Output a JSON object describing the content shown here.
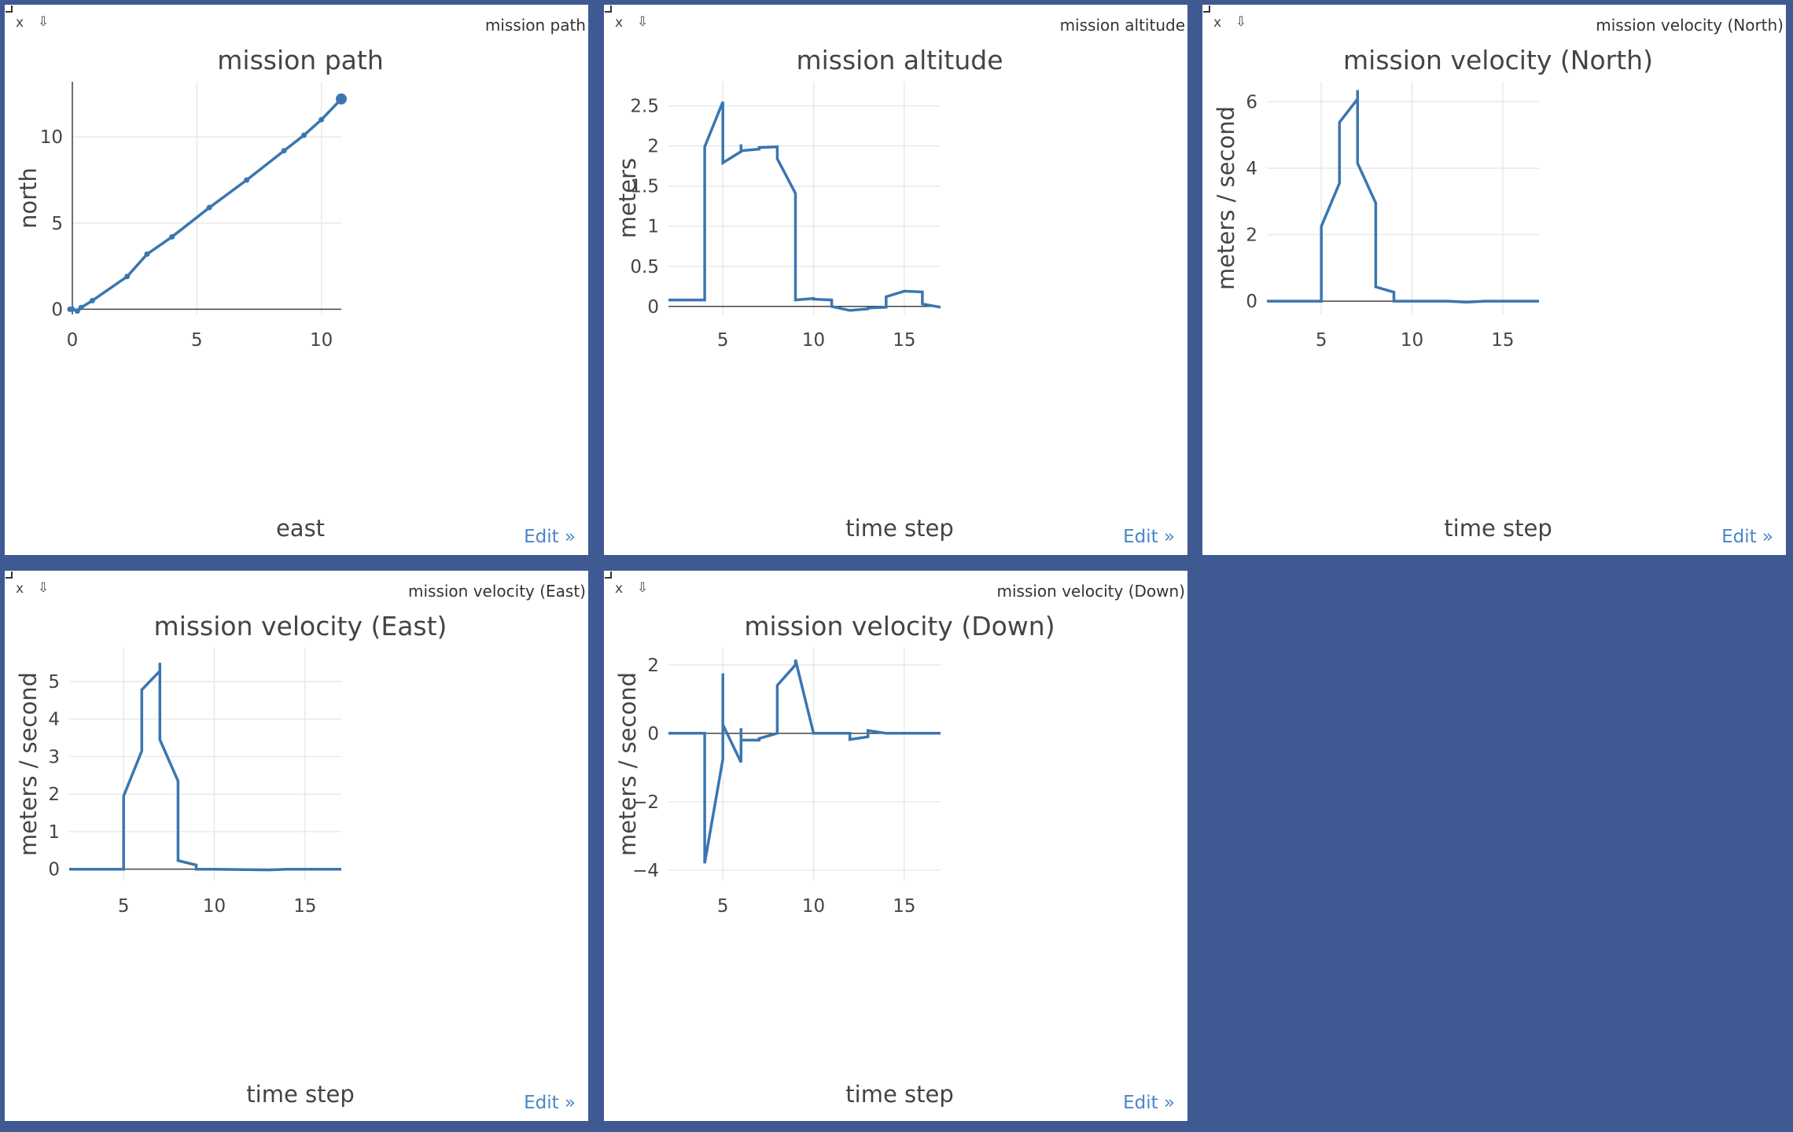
{
  "panels": [
    {
      "id": "mission-path",
      "panel_name": "mission path",
      "close_label": "x",
      "pop_label": "⇩",
      "edit_label": "Edit »"
    },
    {
      "id": "mission-altitude",
      "panel_name": "mission altitude",
      "close_label": "x",
      "pop_label": "⇩",
      "edit_label": "Edit »"
    },
    {
      "id": "mission-velocity-north",
      "panel_name": "mission velocity (North)",
      "close_label": "x",
      "pop_label": "⇩",
      "edit_label": "Edit »"
    },
    {
      "id": "mission-velocity-east",
      "panel_name": "mission velocity (East)",
      "close_label": "x",
      "pop_label": "⇩",
      "edit_label": "Edit »"
    },
    {
      "id": "mission-velocity-down",
      "panel_name": "mission velocity (Down)",
      "close_label": "x",
      "pop_label": "⇩",
      "edit_label": "Edit »"
    }
  ],
  "colors": {
    "line": "#3a76b0",
    "grid": "#e9e9e9",
    "text": "#444444",
    "background": "#3f5a92",
    "edit_link": "#4a86c8"
  },
  "chart_data": [
    {
      "type": "line",
      "title": "mission path",
      "xlabel": "east",
      "ylabel": "north",
      "xlim": [
        0,
        10.8
      ],
      "ylim": [
        -0.3,
        13.2
      ],
      "xticks": [
        0,
        5,
        10
      ],
      "yticks": [
        0,
        5,
        10
      ],
      "grid": true,
      "markers": true,
      "series": [
        {
          "x": [
            -0.1,
            0.0,
            0.2,
            0.35,
            0.8,
            2.2,
            3.0,
            4.0,
            5.5,
            7.0,
            8.5,
            9.3,
            10.0,
            10.8
          ],
          "y": [
            0.0,
            0.0,
            -0.1,
            0.1,
            0.5,
            1.9,
            3.2,
            4.2,
            5.9,
            7.5,
            9.2,
            10.1,
            11.0,
            12.2
          ]
        }
      ]
    },
    {
      "type": "line",
      "title": "mission altitude",
      "xlabel": "time step",
      "ylabel": "meters",
      "xlim": [
        2,
        17
      ],
      "ylim": [
        -0.1,
        2.8
      ],
      "xticks": [
        5,
        10,
        15
      ],
      "yticks": [
        0,
        0.5,
        1,
        1.5,
        2,
        2.5
      ],
      "ytick_labels": [
        "0",
        "0.5",
        "1",
        "1.5",
        "2",
        "2.5"
      ],
      "grid": true,
      "series": [
        {
          "x": [
            2,
            4,
            4,
            5,
            5,
            6,
            6,
            6,
            7,
            7,
            8,
            8,
            9,
            9,
            10,
            10,
            11,
            11,
            12,
            12,
            13,
            13,
            14,
            14,
            15,
            15,
            16,
            16,
            17
          ],
          "y": [
            0.08,
            0.08,
            1.99,
            2.55,
            1.79,
            1.93,
            2.02,
            1.94,
            1.96,
            1.98,
            1.99,
            1.84,
            1.41,
            0.08,
            0.1,
            0.09,
            0.08,
            0.0,
            -0.05,
            -0.05,
            -0.03,
            -0.02,
            -0.01,
            0.12,
            0.19,
            0.19,
            0.18,
            0.03,
            -0.01
          ]
        }
      ]
    },
    {
      "type": "line",
      "title": "mission velocity (North)",
      "xlabel": "time step",
      "ylabel": "meters / second",
      "xlim": [
        2,
        17
      ],
      "ylim": [
        -0.4,
        6.6
      ],
      "xticks": [
        5,
        10,
        15
      ],
      "yticks": [
        0,
        2,
        4,
        6
      ],
      "grid": true,
      "series": [
        {
          "x": [
            2,
            5,
            5,
            6,
            6,
            7,
            7,
            7,
            8,
            8,
            9,
            9,
            10,
            12,
            13,
            14,
            17
          ],
          "y": [
            0.0,
            0.0,
            2.25,
            3.55,
            5.38,
            6.08,
            6.35,
            4.15,
            2.95,
            0.43,
            0.27,
            0.0,
            0.0,
            0.0,
            -0.03,
            0.0,
            0.0
          ]
        }
      ]
    },
    {
      "type": "line",
      "title": "mission velocity (East)",
      "xlabel": "time step",
      "ylabel": "meters / second",
      "xlim": [
        2,
        17
      ],
      "ylim": [
        -0.3,
        5.9
      ],
      "xticks": [
        5,
        10,
        15
      ],
      "yticks": [
        0,
        1,
        2,
        3,
        4,
        5
      ],
      "grid": true,
      "series": [
        {
          "x": [
            2,
            5,
            5,
            6,
            6,
            7,
            7,
            7,
            8,
            8,
            9,
            9,
            10,
            13,
            14,
            17
          ],
          "y": [
            0.0,
            0.0,
            1.95,
            3.15,
            4.78,
            5.28,
            5.5,
            3.45,
            2.35,
            0.23,
            0.11,
            0.0,
            0.0,
            -0.02,
            0.0,
            0.0
          ]
        }
      ]
    },
    {
      "type": "line",
      "title": "mission velocity (Down)",
      "xlabel": "time step",
      "ylabel": "meters / second",
      "xlim": [
        2,
        17
      ],
      "ylim": [
        -4.3,
        2.5
      ],
      "xticks": [
        5,
        10,
        15
      ],
      "yticks": [
        -4,
        -2,
        0,
        2
      ],
      "ytick_labels": [
        "−4",
        "−2",
        "0",
        "2"
      ],
      "grid": true,
      "series": [
        {
          "x": [
            2,
            4,
            4,
            5,
            5,
            5,
            6,
            6,
            6,
            7,
            7,
            8,
            8,
            9,
            9,
            10,
            12,
            12,
            13,
            13,
            14,
            17
          ],
          "y": [
            0.0,
            0.0,
            -3.8,
            -0.75,
            1.75,
            0.25,
            -0.85,
            0.15,
            -0.2,
            -0.2,
            -0.15,
            0.0,
            1.4,
            2.0,
            2.15,
            0.0,
            0.0,
            -0.18,
            -0.1,
            0.08,
            0.0,
            0.0
          ]
        }
      ]
    }
  ]
}
